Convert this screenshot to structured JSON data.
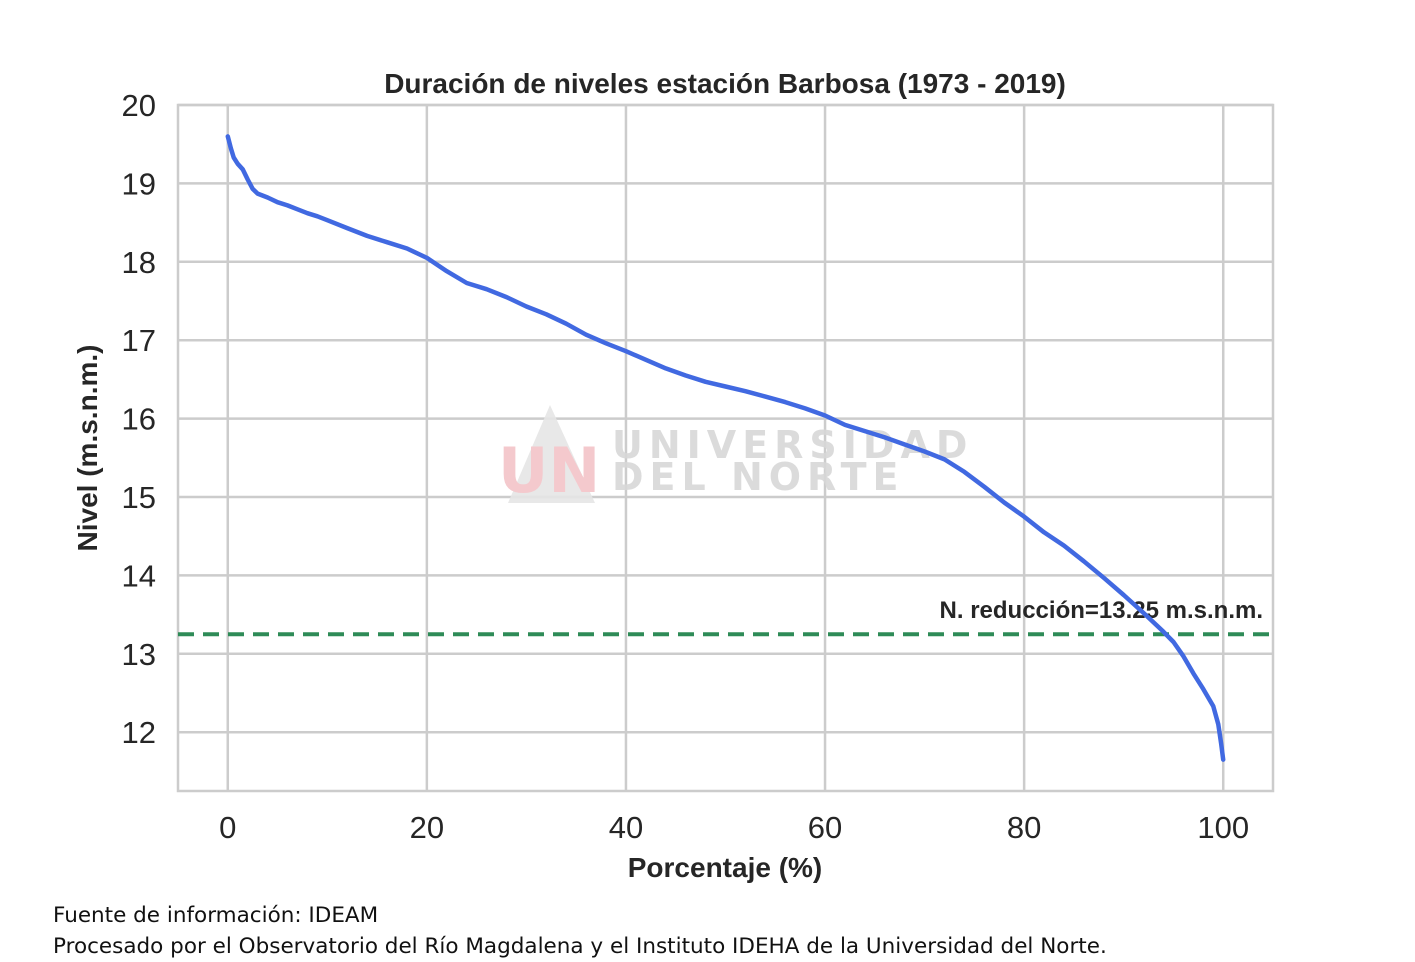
{
  "chart_data": {
    "type": "line",
    "title": "Duración de niveles estación Barbosa (1973 - 2019)",
    "xlabel": "Porcentaje (%)",
    "ylabel": "Nivel (m.s.n.m.)",
    "xlim": [
      -5,
      105
    ],
    "ylim": [
      11.25,
      20
    ],
    "xticks": [
      0,
      20,
      40,
      60,
      80,
      100
    ],
    "yticks": [
      12,
      13,
      14,
      15,
      16,
      17,
      18,
      19,
      20
    ],
    "grid": true,
    "series": [
      {
        "color": "#4169e1",
        "x": [
          0,
          0.3,
          0.6,
          1,
          1.5,
          2,
          2.5,
          3,
          4,
          5,
          6,
          7,
          8,
          9,
          10,
          12,
          14,
          16,
          18,
          20,
          22,
          24,
          26,
          28,
          30,
          32,
          34,
          36,
          38,
          40,
          42,
          44,
          46,
          48,
          50,
          52,
          54,
          56,
          58,
          60,
          62,
          64,
          66,
          68,
          70,
          72,
          74,
          76,
          78,
          80,
          82,
          84,
          86,
          88,
          90,
          92,
          94,
          95,
          96,
          97,
          98,
          99,
          99.5,
          99.8,
          100
        ],
        "y": [
          19.6,
          19.45,
          19.33,
          19.25,
          19.18,
          19.05,
          18.93,
          18.87,
          18.82,
          18.76,
          18.72,
          18.67,
          18.62,
          18.58,
          18.53,
          18.43,
          18.33,
          18.25,
          18.17,
          18.05,
          17.88,
          17.73,
          17.65,
          17.55,
          17.43,
          17.33,
          17.21,
          17.07,
          16.96,
          16.86,
          16.75,
          16.64,
          16.55,
          16.47,
          16.41,
          16.35,
          16.28,
          16.21,
          16.13,
          16.04,
          15.92,
          15.84,
          15.76,
          15.67,
          15.58,
          15.48,
          15.32,
          15.13,
          14.93,
          14.75,
          14.55,
          14.38,
          14.18,
          13.97,
          13.75,
          13.52,
          13.28,
          13.15,
          12.97,
          12.75,
          12.55,
          12.33,
          12.1,
          11.85,
          11.65
        ]
      }
    ],
    "annotations": [
      {
        "type": "hline",
        "y": 13.25,
        "color": "#2e8b57",
        "style": "dashed",
        "label": "N. reducción=13.25 m.s.n.m."
      }
    ]
  },
  "watermark": {
    "logo_text": "UN",
    "line1": "UNIVERSIDAD",
    "line2": "DEL NORTE"
  },
  "footer": {
    "line1": "Fuente de información: IDEAM",
    "line2": "Procesado por el Observatorio del Río Magdalena y el Instituto IDEHA de la Universidad del Norte."
  }
}
